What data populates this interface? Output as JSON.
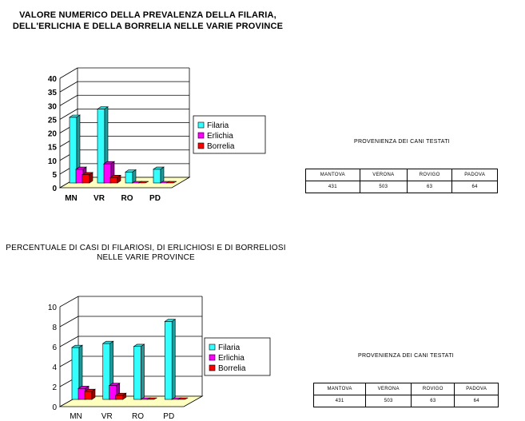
{
  "chart_data": [
    {
      "type": "bar",
      "title": "VALORE NUMERICO DELLA PREVALENZA DELLA FILARIA, DELL'ERLICHIA E DELLA BORRELIA NELLE VARIE PROVINCE",
      "title_lines": [
        "VALORE NUMERICO DELLA PREVALENZA DELLA FILARIA,",
        "DELL'ERLICHIA E DELLA BORRELIA NELLE VARIE PROVINCE"
      ],
      "categories": [
        "MN",
        "VR",
        "RO",
        "PD"
      ],
      "series": [
        {
          "name": "Filaria",
          "values": [
            24,
            27,
            4,
            5
          ]
        },
        {
          "name": "Erlichia",
          "values": [
            5,
            7,
            0,
            0
          ]
        },
        {
          "name": "Borrelia",
          "values": [
            3,
            2,
            0,
            0
          ]
        }
      ],
      "ylim": [
        0,
        40
      ],
      "yticks": [
        "0",
        "5",
        "10",
        "15",
        "20",
        "25",
        "30",
        "35",
        "40"
      ],
      "grid": true,
      "legend": "right"
    },
    {
      "type": "bar",
      "title": "PERCENTUALE DI CASI DI FILARIOSI, DI ERLICHIOSI E DI BORRELIOSI NELLE VARIE PROVINCE",
      "title_lines": [
        "PERCENTUALE DI CASI DI FILARIOSI, DI ERLICHIOSI E DI BORRELIOSI",
        "NELLE VARIE PROVINCE"
      ],
      "categories": [
        "MN",
        "VR",
        "RO",
        "PD"
      ],
      "series": [
        {
          "name": "Filaria",
          "values": [
            5.2,
            5.6,
            5.3,
            7.8
          ]
        },
        {
          "name": "Erlichia",
          "values": [
            1.1,
            1.4,
            0,
            0
          ]
        },
        {
          "name": "Borrelia",
          "values": [
            0.8,
            0.4,
            0,
            0
          ]
        }
      ],
      "ylim": [
        0,
        10
      ],
      "yticks": [
        "0",
        "2",
        "4",
        "6",
        "8",
        "10"
      ],
      "grid": true,
      "legend": "right"
    }
  ],
  "colors": {
    "Filaria": "#33ffff",
    "Erlichia": "#ff00ff",
    "Borrelia": "#ff0000",
    "floor": "#ffffc0"
  },
  "tables": [
    {
      "title": "PROVENIENZA DEI CANI TESTATI",
      "headers": [
        "MANTOVA",
        "VERONA",
        "ROVIGO",
        "PADOVA"
      ],
      "values": [
        "431",
        "503",
        "63",
        "64"
      ]
    },
    {
      "title": "PROVENIENZA DEI CANI TESTATI",
      "headers": [
        "MANTOVA",
        "VERONA",
        "ROVIGO",
        "PADOVA"
      ],
      "values": [
        "431",
        "503",
        "63",
        "64"
      ]
    }
  ]
}
